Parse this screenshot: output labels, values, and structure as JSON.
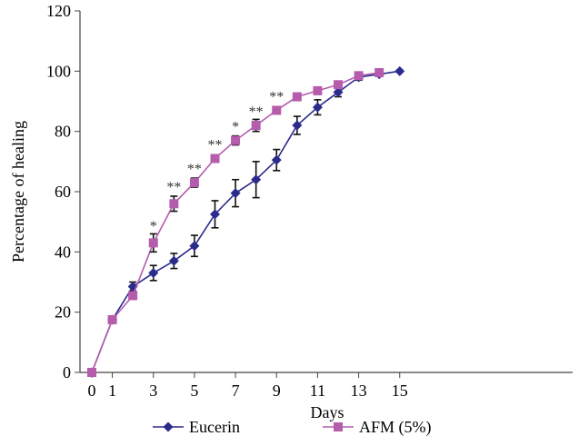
{
  "chart_data": {
    "type": "line",
    "xlabel": "Days",
    "ylabel": "Percentage of healing",
    "xlim": [
      0,
      24
    ],
    "ylim": [
      0,
      120
    ],
    "xticks": [
      0,
      1,
      3,
      5,
      7,
      9,
      11,
      13,
      15
    ],
    "yticks": [
      0,
      20,
      40,
      60,
      80,
      100,
      120
    ],
    "grid": false,
    "legend_position": "bottom",
    "series": [
      {
        "name": "Eucerin",
        "color": "#2b2b8c",
        "marker": "diamond",
        "x": [
          0,
          1,
          2,
          3,
          4,
          5,
          6,
          7,
          8,
          9,
          10,
          11,
          12,
          13,
          14,
          15
        ],
        "y": [
          0,
          17.5,
          28.5,
          33,
          37,
          42,
          52.5,
          59.5,
          64,
          70.5,
          82,
          88,
          93,
          98,
          99,
          100
        ],
        "err": [
          0,
          1,
          1.5,
          2.5,
          2.5,
          3.5,
          4.5,
          4.5,
          6,
          3.5,
          3,
          2.5,
          1.5,
          1,
          0.5,
          0
        ]
      },
      {
        "name": "AFM (5%)",
        "color": "#b55cad",
        "marker": "square",
        "x": [
          0,
          1,
          2,
          3,
          4,
          5,
          6,
          7,
          8,
          9,
          10,
          11,
          12,
          13,
          14
        ],
        "y": [
          0,
          17.5,
          25.5,
          43,
          56,
          63,
          71,
          77,
          82,
          87,
          91.5,
          93.5,
          95.5,
          98.5,
          99.5
        ],
        "err": [
          0,
          1,
          1,
          3,
          2.5,
          1.5,
          1,
          1.5,
          2,
          1,
          0.5,
          0.5,
          0.5,
          0.5,
          0.5
        ]
      }
    ],
    "annotations": [
      {
        "x": 3,
        "y": 47,
        "text": "*"
      },
      {
        "x": 4,
        "y": 60,
        "text": "**"
      },
      {
        "x": 5,
        "y": 66,
        "text": "**"
      },
      {
        "x": 6,
        "y": 74,
        "text": "**"
      },
      {
        "x": 7,
        "y": 80,
        "text": "*"
      },
      {
        "x": 8,
        "y": 85,
        "text": "**"
      },
      {
        "x": 9,
        "y": 90,
        "text": "**"
      }
    ]
  }
}
